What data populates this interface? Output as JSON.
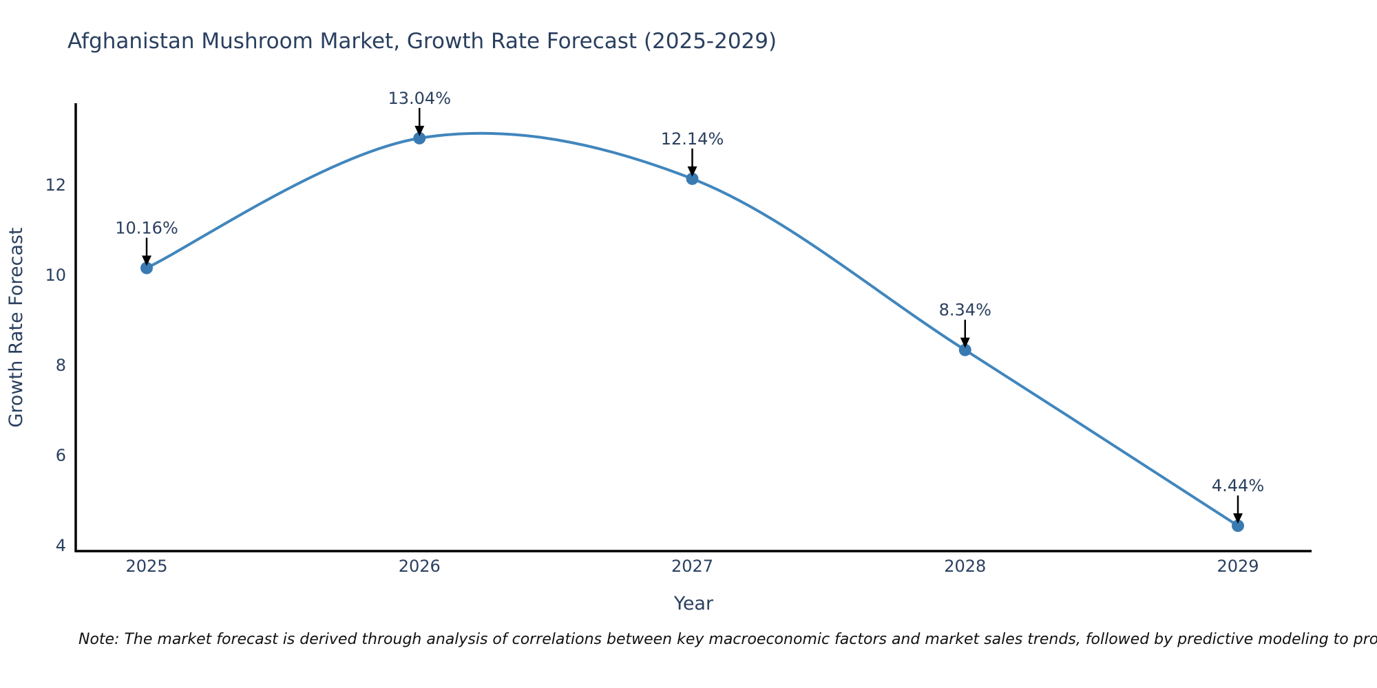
{
  "title": "Afghanistan Mushroom Market, Growth Rate Forecast (2025-2029)",
  "note": "Note: The market forecast is derived through analysis of correlations between key macroeconomic factors and market sales trends, followed by predictive modeling to project future sales",
  "chart_data": {
    "type": "line",
    "title": "Afghanistan Mushroom Market, Growth Rate Forecast (2025-2029)",
    "x": [
      2025,
      2026,
      2027,
      2028,
      2029
    ],
    "series": [
      {
        "name": "Growth Rate Forecast",
        "values": [
          10.16,
          13.04,
          12.14,
          8.34,
          4.44
        ]
      }
    ],
    "point_labels": [
      "10.16%",
      "13.04%",
      "12.14%",
      "8.34%",
      "4.44%"
    ],
    "xlabel": "Year",
    "ylabel": "Growth Rate Forecast",
    "yticks": [
      4,
      6,
      8,
      10,
      12
    ],
    "xticks": [
      2025,
      2026,
      2027,
      2028,
      2029
    ],
    "ylim": [
      4,
      13.8
    ],
    "xlim": [
      2024.74,
      2029.27
    ],
    "line_shape": "spline",
    "grid": false,
    "legend": "none",
    "annotations_have_arrows": true,
    "colors": {
      "line": "#4186bd",
      "marker": "#3a7ab2",
      "axis": "#000000",
      "text": "#2a3f5f",
      "arrow": "#000000",
      "note_text": "#111111",
      "background": "#ffffff"
    }
  }
}
